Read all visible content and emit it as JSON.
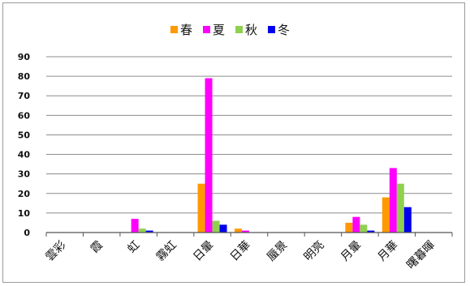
{
  "chart_data": {
    "type": "bar",
    "title": "",
    "xlabel": "",
    "ylabel": "",
    "ylim": [
      0,
      90
    ],
    "yticks": [
      0,
      10,
      20,
      30,
      40,
      50,
      60,
      70,
      80,
      90
    ],
    "grid": true,
    "legend_position": "top",
    "categories": [
      "雲彩",
      "霞",
      "虹",
      "霧虹",
      "日暈",
      "日華",
      "蜃景",
      "明亮",
      "月暈",
      "月華",
      "曙暮暉"
    ],
    "series": [
      {
        "name": "春",
        "color": "#ff9900",
        "values": [
          0,
          0,
          0,
          0,
          25,
          2,
          0,
          0,
          5,
          18,
          0
        ]
      },
      {
        "name": "夏",
        "color": "#ff00ff",
        "values": [
          0,
          0,
          7,
          0,
          79,
          1,
          0,
          0,
          8,
          33,
          0
        ]
      },
      {
        "name": "秋",
        "color": "#8fd14f",
        "values": [
          0,
          0,
          2,
          0,
          6,
          0,
          0,
          0,
          4,
          25,
          0
        ]
      },
      {
        "name": "冬",
        "color": "#0000ee",
        "values": [
          0,
          0,
          1,
          0,
          4,
          0,
          0,
          0,
          1,
          13,
          0
        ]
      }
    ]
  }
}
